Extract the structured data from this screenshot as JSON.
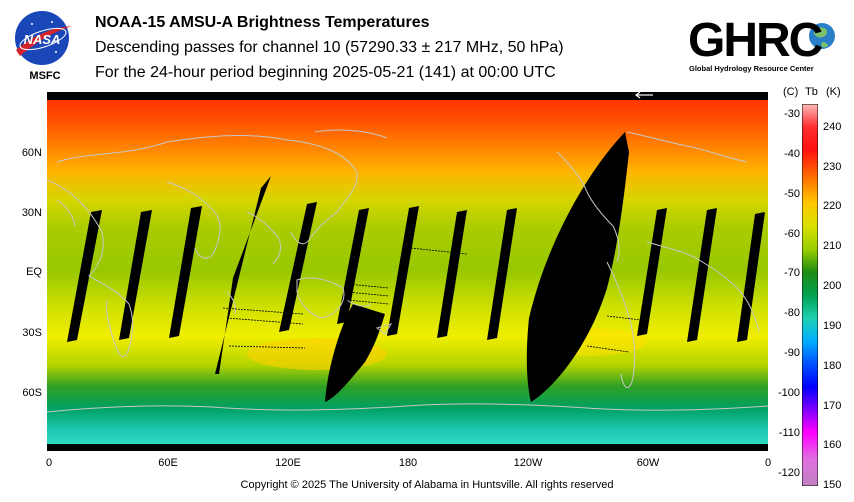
{
  "header": {
    "title": "NOAA-15 AMSU-A Brightness Temperatures",
    "subtitle": "Descending passes for channel 10 (57290.33 ± 217 MHz, 50 hPa)",
    "period": "For the 24-hour period beginning 2025-05-21 (141) at 00:00 UTC"
  },
  "logos": {
    "nasa_text": "NASA",
    "msfc_text": "MSFC",
    "ghrc_text": "GHRC",
    "ghrc_subtitle": "Global Hydrology Resource Center"
  },
  "map": {
    "lat_labels": [
      "60N",
      "30N",
      "EQ",
      "30S",
      "60S"
    ],
    "lon_labels": [
      "0",
      "60E",
      "120E",
      "180",
      "120W",
      "60W",
      "0"
    ],
    "colors": {
      "background_missing": "#000000",
      "coastline": "#c8c8c8"
    }
  },
  "colorbar": {
    "header_celsius": "(C)",
    "header_tb": "Tb",
    "header_kelvin": "(K)",
    "celsius_ticks": [
      "-30",
      "-40",
      "-50",
      "-60",
      "-70",
      "-80",
      "-90",
      "-100",
      "-110",
      "-120"
    ],
    "kelvin_ticks": [
      "240",
      "230",
      "220",
      "210",
      "200",
      "190",
      "180",
      "170",
      "160",
      "150"
    ],
    "kelvin_range": [
      150,
      245
    ]
  },
  "footer": {
    "copyright": "Copyright © 2025 The University of Alabama in Huntsville.  All rights reserved"
  }
}
